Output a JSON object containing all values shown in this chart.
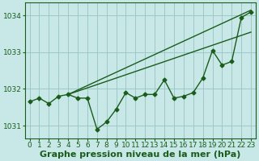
{
  "xlabel": "Graphe pression niveau de la mer (hPa)",
  "background_color": "#c8e8e8",
  "plot_bg_color": "#c8e8e8",
  "grid_color": "#9ec8c8",
  "line_color": "#1a5c1a",
  "hours": [
    0,
    1,
    2,
    3,
    4,
    5,
    6,
    7,
    8,
    9,
    10,
    11,
    12,
    13,
    14,
    15,
    16,
    17,
    18,
    19,
    20,
    21,
    22,
    23
  ],
  "pressure_main": [
    1031.65,
    1031.75,
    1031.6,
    1031.8,
    1031.85,
    1031.75,
    1031.75,
    1030.9,
    1031.1,
    1031.45,
    1031.9,
    1031.75,
    1031.85,
    1031.85,
    1032.25,
    1031.75,
    1031.8,
    1031.9,
    1032.3,
    1033.05,
    1032.65,
    1032.75,
    1033.95,
    1034.1
  ],
  "line2_x": [
    4,
    23
  ],
  "line2_y": [
    1031.85,
    1034.15
  ],
  "line3_x": [
    4,
    23
  ],
  "line3_y": [
    1031.85,
    1033.55
  ],
  "ylim": [
    1030.65,
    1034.35
  ],
  "yticks": [
    1031,
    1032,
    1033,
    1034
  ],
  "xticks": [
    0,
    1,
    2,
    3,
    4,
    5,
    6,
    7,
    8,
    9,
    10,
    11,
    12,
    13,
    14,
    15,
    16,
    17,
    18,
    19,
    20,
    21,
    22,
    23
  ],
  "xlabel_fontsize": 8,
  "tick_fontsize": 6.5,
  "marker": "D",
  "markersize": 2.5,
  "linewidth": 1.0
}
